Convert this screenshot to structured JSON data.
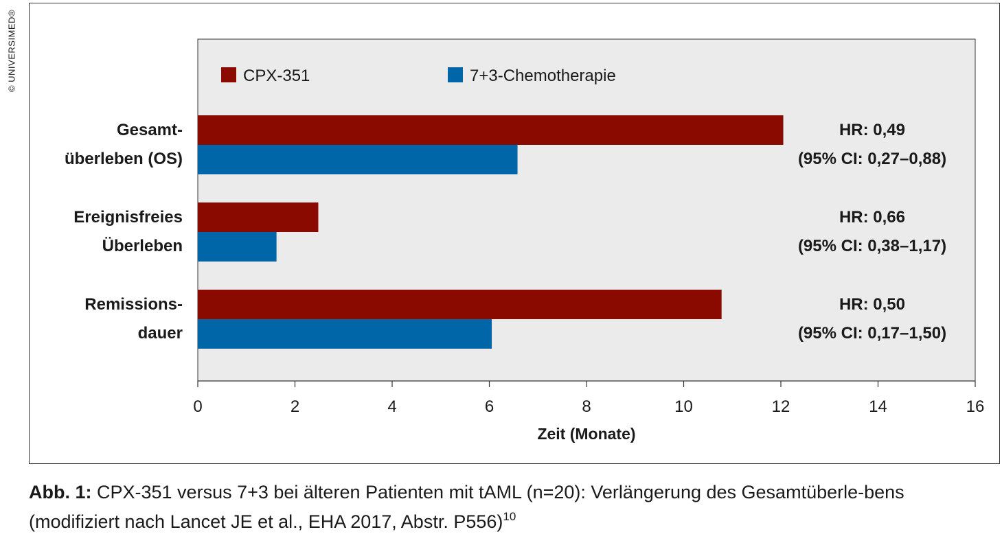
{
  "copyright": "© UNIVERSIMED®",
  "chart_data": {
    "type": "bar",
    "orientation": "horizontal",
    "categories": [
      [
        "Gesamt-",
        "überleben (OS)"
      ],
      [
        "Ereignisfreies",
        "Überleben"
      ],
      [
        "Remissions-",
        "dauer"
      ]
    ],
    "series": [
      {
        "name": "CPX-351",
        "color": "#8b0a00",
        "values": [
          12.05,
          2.48,
          10.78
        ]
      },
      {
        "name": "7+3-Chemotherapie",
        "color": "#0066a8",
        "values": [
          6.58,
          1.62,
          6.05
        ]
      }
    ],
    "annotations": [
      [
        "HR: 0,49",
        "(95% CI: 0,27–0,88)"
      ],
      [
        "HR: 0,66",
        "(95% CI: 0,38–1,17)"
      ],
      [
        "HR: 0,50",
        "(95% CI: 0,17–1,50)"
      ]
    ],
    "xlabel": "Zeit (Monate)",
    "xlim": [
      0,
      16
    ],
    "xticks": [
      0,
      2,
      4,
      6,
      8,
      10,
      12,
      14,
      16
    ],
    "legend_position": "top",
    "plot_background": "#ebebeb",
    "grid": false
  },
  "caption": {
    "label": "Abb. 1:",
    "text": " CPX-351 versus 7+3 bei älteren Patienten mit tAML (n=20): Verlängerung des Gesamtüberle-bens (modifiziert nach Lancet JE et al., EHA 2017, Abstr. P556)",
    "ref": "10"
  }
}
